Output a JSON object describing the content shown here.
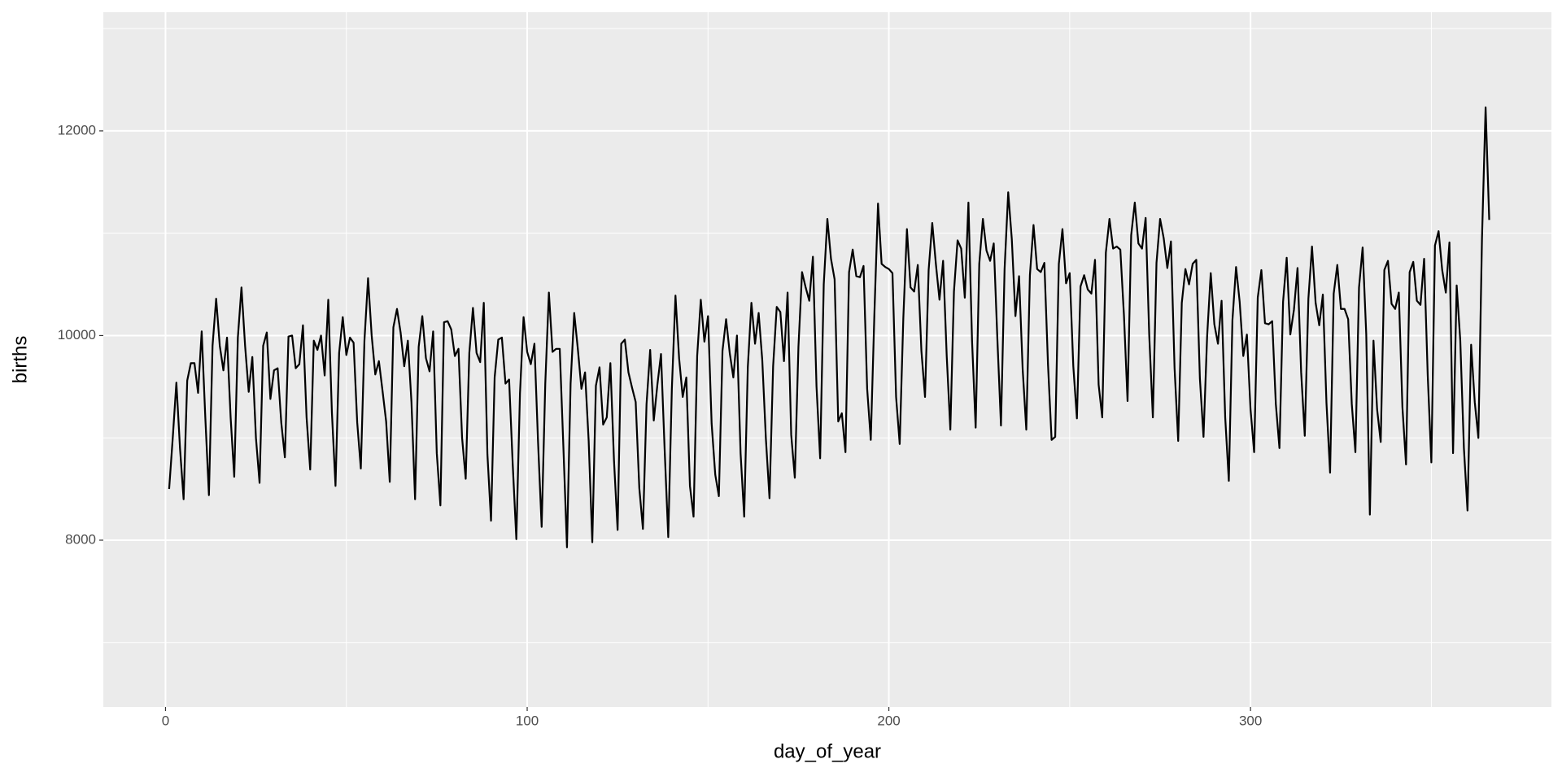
{
  "chart_data": {
    "type": "line",
    "xlabel": "day_of_year",
    "ylabel": "births",
    "xlim": [
      -17.2,
      383.2
    ],
    "xticks": [
      0,
      100,
      200,
      300
    ],
    "xminor": [
      50,
      150,
      250,
      350
    ],
    "ylim": [
      6370,
      13160
    ],
    "yticks": [
      8000,
      10000,
      12000
    ],
    "yminor": [
      7000,
      9000,
      11000,
      13000
    ],
    "grid": true,
    "color": "#000000",
    "x": [
      1,
      2,
      3,
      4,
      5,
      6,
      7,
      8,
      9,
      10,
      11,
      12,
      13,
      14,
      15,
      16,
      17,
      18,
      19,
      20,
      21,
      22,
      23,
      24,
      25,
      26,
      27,
      28,
      29,
      30,
      31,
      32,
      33,
      34,
      35,
      36,
      37,
      38,
      39,
      40,
      41,
      42,
      43,
      44,
      45,
      46,
      47,
      48,
      49,
      50,
      51,
      52,
      53,
      54,
      55,
      56,
      57,
      58,
      59,
      60,
      61,
      62,
      63,
      64,
      65,
      66,
      67,
      68,
      69,
      70,
      71,
      72,
      73,
      74,
      75,
      76,
      77,
      78,
      79,
      80,
      81,
      82,
      83,
      84,
      85,
      86,
      87,
      88,
      89,
      90,
      91,
      92,
      93,
      94,
      95,
      96,
      97,
      98,
      99,
      100,
      101,
      102,
      103,
      104,
      105,
      106,
      107,
      108,
      109,
      110,
      111,
      112,
      113,
      114,
      115,
      116,
      117,
      118,
      119,
      120,
      121,
      122,
      123,
      124,
      125,
      126,
      127,
      128,
      129,
      130,
      131,
      132,
      133,
      134,
      135,
      136,
      137,
      138,
      139,
      140,
      141,
      142,
      143,
      144,
      145,
      146,
      147,
      148,
      149,
      150,
      151,
      152,
      153,
      154,
      155,
      156,
      157,
      158,
      159,
      160,
      161,
      162,
      163,
      164,
      165,
      166,
      167,
      168,
      169,
      170,
      171,
      172,
      173,
      174,
      175,
      176,
      177,
      178,
      179,
      180,
      181,
      182,
      183,
      184,
      185,
      186,
      187,
      188,
      189,
      190,
      191,
      192,
      193,
      194,
      195,
      196,
      197,
      198,
      199,
      200,
      201,
      202,
      203,
      204,
      205,
      206,
      207,
      208,
      209,
      210,
      211,
      212,
      213,
      214,
      215,
      216,
      217,
      218,
      219,
      220,
      221,
      222,
      223,
      224,
      225,
      226,
      227,
      228,
      229,
      230,
      231,
      232,
      233,
      234,
      235,
      236,
      237,
      238,
      239,
      240,
      241,
      242,
      243,
      244,
      245,
      246,
      247,
      248,
      249,
      250,
      251,
      252,
      253,
      254,
      255,
      256,
      257,
      258,
      259,
      260,
      261,
      262,
      263,
      264,
      265,
      266,
      267,
      268,
      269,
      270,
      271,
      272,
      273,
      274,
      275,
      276,
      277,
      278,
      279,
      280,
      281,
      282,
      283,
      284,
      285,
      286,
      287,
      288,
      289,
      290,
      291,
      292,
      293,
      294,
      295,
      296,
      297,
      298,
      299,
      300,
      301,
      302,
      303,
      304,
      305,
      306,
      307,
      308,
      309,
      310,
      311,
      312,
      313,
      314,
      315,
      316,
      317,
      318,
      319,
      320,
      321,
      322,
      323,
      324,
      325,
      326,
      327,
      328,
      329,
      330,
      331,
      332,
      333,
      334,
      335,
      336,
      337,
      338,
      339,
      340,
      341,
      342,
      343,
      344,
      345,
      346,
      347,
      348,
      349,
      350,
      351,
      352,
      353,
      354,
      355,
      356,
      357,
      358,
      359,
      360,
      361,
      362,
      363,
      364,
      365,
      366
    ],
    "values": [
      8500,
      9000,
      9540,
      8900,
      8400,
      9560,
      9730,
      9730,
      9440,
      10040,
      9200,
      8440,
      9900,
      10360,
      9900,
      9660,
      9980,
      9200,
      8620,
      9980,
      10470,
      9900,
      9450,
      9790,
      9000,
      8560,
      9900,
      10030,
      9380,
      9660,
      9680,
      9150,
      8810,
      9990,
      10000,
      9680,
      9720,
      10100,
      9200,
      8690,
      9950,
      9860,
      10000,
      9610,
      10350,
      9250,
      8530,
      9830,
      10180,
      9810,
      9980,
      9930,
      9150,
      8700,
      9950,
      10560,
      10000,
      9620,
      9750,
      9460,
      9160,
      8570,
      10080,
      10260,
      10030,
      9700,
      9950,
      9350,
      8400,
      9890,
      10190,
      9780,
      9650,
      10040,
      8850,
      8340,
      10130,
      10140,
      10060,
      9800,
      9870,
      9000,
      8600,
      9830,
      10270,
      9830,
      9740,
      10320,
      8840,
      8190,
      9590,
      9960,
      9980,
      9530,
      9570,
      8740,
      8010,
      9430,
      10180,
      9840,
      9720,
      9920,
      8960,
      8130,
      9530,
      10420,
      9840,
      9870,
      9870,
      8920,
      7930,
      9530,
      10220,
      9870,
      9480,
      9640,
      8970,
      7980,
      9510,
      9690,
      9130,
      9200,
      9730,
      8780,
      8100,
      9920,
      9960,
      9640,
      9490,
      9350,
      8510,
      8110,
      9330,
      9860,
      9170,
      9520,
      9820,
      8890,
      8030,
      9480,
      10390,
      9780,
      9400,
      9590,
      8530,
      8230,
      9800,
      10350,
      9940,
      10190,
      9140,
      8640,
      8430,
      9850,
      10160,
      9830,
      9590,
      10000,
      8850,
      8230,
      9690,
      10320,
      9920,
      10220,
      9760,
      8990,
      8410,
      9700,
      10280,
      10230,
      9750,
      10420,
      9030,
      8610,
      9890,
      10620,
      10470,
      10340,
      10770,
      9500,
      8800,
      10500,
      11140,
      10750,
      10550,
      9160,
      9240,
      8860,
      10620,
      10840,
      10580,
      10570,
      10680,
      9480,
      8980,
      10210,
      11290,
      10700,
      10670,
      10650,
      10610,
      9400,
      8940,
      10170,
      11040,
      10470,
      10430,
      10690,
      9850,
      9400,
      10640,
      11100,
      10700,
      10350,
      10730,
      9800,
      9080,
      10430,
      10930,
      10850,
      10370,
      11300,
      9950,
      9100,
      10700,
      11140,
      10830,
      10730,
      10900,
      9970,
      9120,
      10650,
      11400,
      10940,
      10190,
      10580,
      9670,
      9080,
      10590,
      11080,
      10650,
      10620,
      10710,
      9720,
      8980,
      9010,
      10700,
      11040,
      10510,
      10610,
      9700,
      9190,
      10480,
      10590,
      10450,
      10410,
      10740,
      9520,
      9200,
      10810,
      11140,
      10850,
      10870,
      10840,
      10200,
      9360,
      10980,
      11300,
      10900,
      10850,
      11150,
      10000,
      9200,
      10710,
      11140,
      10950,
      10660,
      10920,
      9680,
      8970,
      10320,
      10650,
      10500,
      10700,
      10740,
      9580,
      9010,
      9990,
      10610,
      10110,
      9920,
      10340,
      9200,
      8580,
      10150,
      10670,
      10330,
      9800,
      10010,
      9280,
      8860,
      10370,
      10640,
      10120,
      10110,
      10140,
      9330,
      8900,
      10330,
      10760,
      10010,
      10250,
      10660,
      9640,
      9020,
      10360,
      10870,
      10320,
      10100,
      10400,
      9340,
      8660,
      10410,
      10690,
      10260,
      10260,
      10160,
      9330,
      8860,
      10470,
      10860,
      10010,
      8250,
      9950,
      9280,
      8960,
      10640,
      10730,
      10310,
      10260,
      10420,
      9300,
      8740,
      10620,
      10720,
      10340,
      10300,
      10750,
      9610,
      8760,
      10880,
      11020,
      10640,
      10420,
      10910,
      8850,
      10490,
      9950,
      8900,
      8290,
      9910,
      9350,
      9000,
      10950,
      12230,
      11130
    ]
  }
}
